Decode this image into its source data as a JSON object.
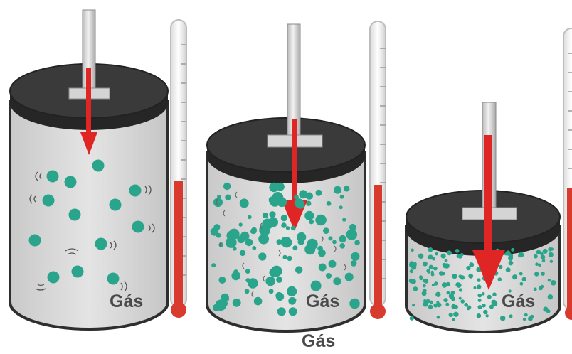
{
  "labels": {
    "cylinder_1": "Gás",
    "cylinder_2": "Gás",
    "cylinder_3": "Gás",
    "bottom": "Gás"
  },
  "colors": {
    "molecule": "#2aa58c",
    "arrow": "#e02525",
    "mercury": "#d93a2e",
    "lid": "#3a3a3a",
    "cylinder_body": "#d9d9d9"
  },
  "thermometers": [
    {
      "name": "thermometer-1",
      "level": 0.45
    },
    {
      "name": "thermometer-2",
      "level": 0.45
    },
    {
      "name": "thermometer-3",
      "level": 0.45
    }
  ]
}
